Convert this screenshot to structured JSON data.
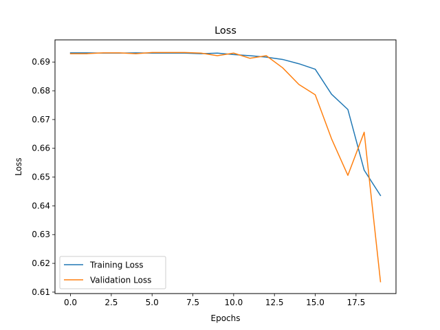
{
  "chart_data": {
    "type": "line",
    "title": "Loss",
    "xlabel": "Epochs",
    "ylabel": "Loss",
    "xlim": [
      -0.95,
      19.95
    ],
    "ylim": [
      0.6095,
      0.6977
    ],
    "xticks": [
      0.0,
      2.5,
      5.0,
      7.5,
      10.0,
      12.5,
      15.0,
      17.5
    ],
    "xtick_labels": [
      "0.0",
      "2.5",
      "5.0",
      "7.5",
      "10.0",
      "12.5",
      "15.0",
      "17.5"
    ],
    "yticks": [
      0.61,
      0.62,
      0.63,
      0.64,
      0.65,
      0.66,
      0.67,
      0.68,
      0.69
    ],
    "ytick_labels": [
      "0.61",
      "0.62",
      "0.63",
      "0.64",
      "0.65",
      "0.66",
      "0.67",
      "0.68",
      "0.69"
    ],
    "grid": false,
    "legend_position": "lower-left",
    "x": [
      0,
      1,
      2,
      3,
      4,
      5,
      6,
      7,
      8,
      9,
      10,
      11,
      12,
      13,
      14,
      15,
      16,
      17,
      18,
      19
    ],
    "series": [
      {
        "name": "Training Loss",
        "color": "#1f77b4",
        "values": [
          0.6932,
          0.6932,
          0.6931,
          0.6931,
          0.6932,
          0.6931,
          0.6931,
          0.6931,
          0.6929,
          0.6931,
          0.6926,
          0.6922,
          0.6917,
          0.6909,
          0.6894,
          0.6875,
          0.6788,
          0.6735,
          0.6524,
          0.6436
        ]
      },
      {
        "name": "Validation Loss",
        "color": "#ff7f0e",
        "values": [
          0.6929,
          0.6929,
          0.6932,
          0.6932,
          0.6929,
          0.6933,
          0.6933,
          0.6933,
          0.6931,
          0.6922,
          0.6931,
          0.6913,
          0.6922,
          0.688,
          0.6822,
          0.6786,
          0.6633,
          0.6506,
          0.6656,
          0.6136
        ]
      }
    ]
  }
}
